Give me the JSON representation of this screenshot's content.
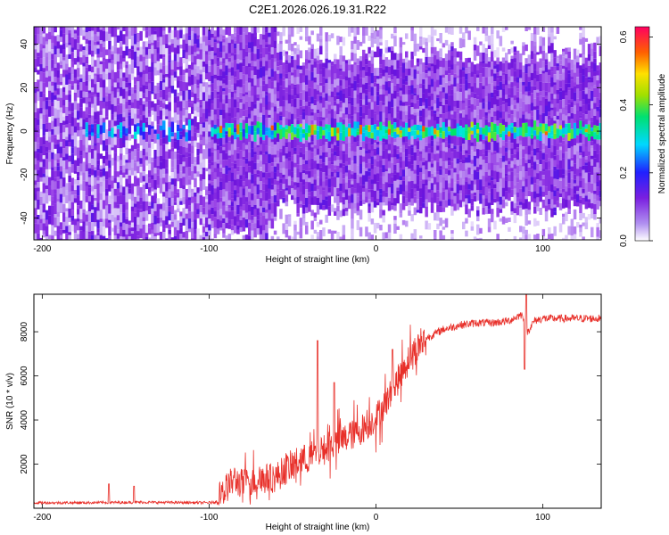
{
  "title": "C2E1.2026.026.19.31.R22",
  "chart_data": [
    {
      "type": "heatmap",
      "xlabel": "Height of straight line (km)",
      "ylabel": "Frequency (Hz)",
      "xlim": [
        -205,
        135
      ],
      "ylim": [
        -50,
        48
      ],
      "xticks": [
        -200,
        -100,
        0,
        100
      ],
      "yticks": [
        -40,
        -20,
        0,
        20,
        40
      ],
      "colorbar": {
        "label": "Normalized spectral amplitude",
        "range": [
          0,
          0.63
        ],
        "ticks": [
          0.0,
          0.2,
          0.4,
          0.6
        ],
        "tick_labels": [
          "0.0",
          "0.2",
          "0.4",
          "0.6"
        ]
      },
      "description_points": {
        "band_center_hz": 0,
        "band_onset_km": -100,
        "peak_amplitude": 0.6
      },
      "colors": {
        "low": "#c8a8f0",
        "mid": "#7a1fe0",
        "band": "#00e0ff",
        "peak": "#ff3000"
      }
    },
    {
      "type": "line",
      "xlabel": "Height of straight line (km)",
      "ylabel": "SNR (10 * v/v)",
      "xlim": [
        -205,
        135
      ],
      "ylim": [
        0,
        9700
      ],
      "xticks": [
        -200,
        -100,
        0,
        100
      ],
      "yticks": [
        2000,
        4000,
        6000,
        8000
      ],
      "color": "#e8302a",
      "series": [
        {
          "name": "SNR",
          "x": [
            -205,
            -180,
            -160,
            -140,
            -120,
            -100,
            -95,
            -90,
            -85,
            -80,
            -70,
            -60,
            -50,
            -40,
            -30,
            -20,
            -10,
            0,
            10,
            20,
            30,
            40,
            50,
            60,
            70,
            80,
            85,
            88,
            90,
            95,
            100,
            110,
            120,
            135
          ],
          "y": [
            250,
            250,
            260,
            270,
            260,
            250,
            300,
            900,
            1300,
            1100,
            1300,
            1400,
            2000,
            2300,
            2700,
            3100,
            3500,
            4100,
            5300,
            6900,
            7700,
            8100,
            8300,
            8400,
            8400,
            8500,
            8700,
            8800,
            7900,
            8500,
            8600,
            8600,
            8600,
            8600
          ]
        }
      ],
      "spikes": [
        {
          "x": -160,
          "y": 1100
        },
        {
          "x": -145,
          "y": 1000
        },
        {
          "x": -35,
          "y": 7600
        },
        {
          "x": -25,
          "y": 5700
        },
        {
          "x": 10,
          "y": 7200
        },
        {
          "x": 90,
          "y": 9700
        },
        {
          "x": 89,
          "y": 6300
        }
      ]
    }
  ]
}
